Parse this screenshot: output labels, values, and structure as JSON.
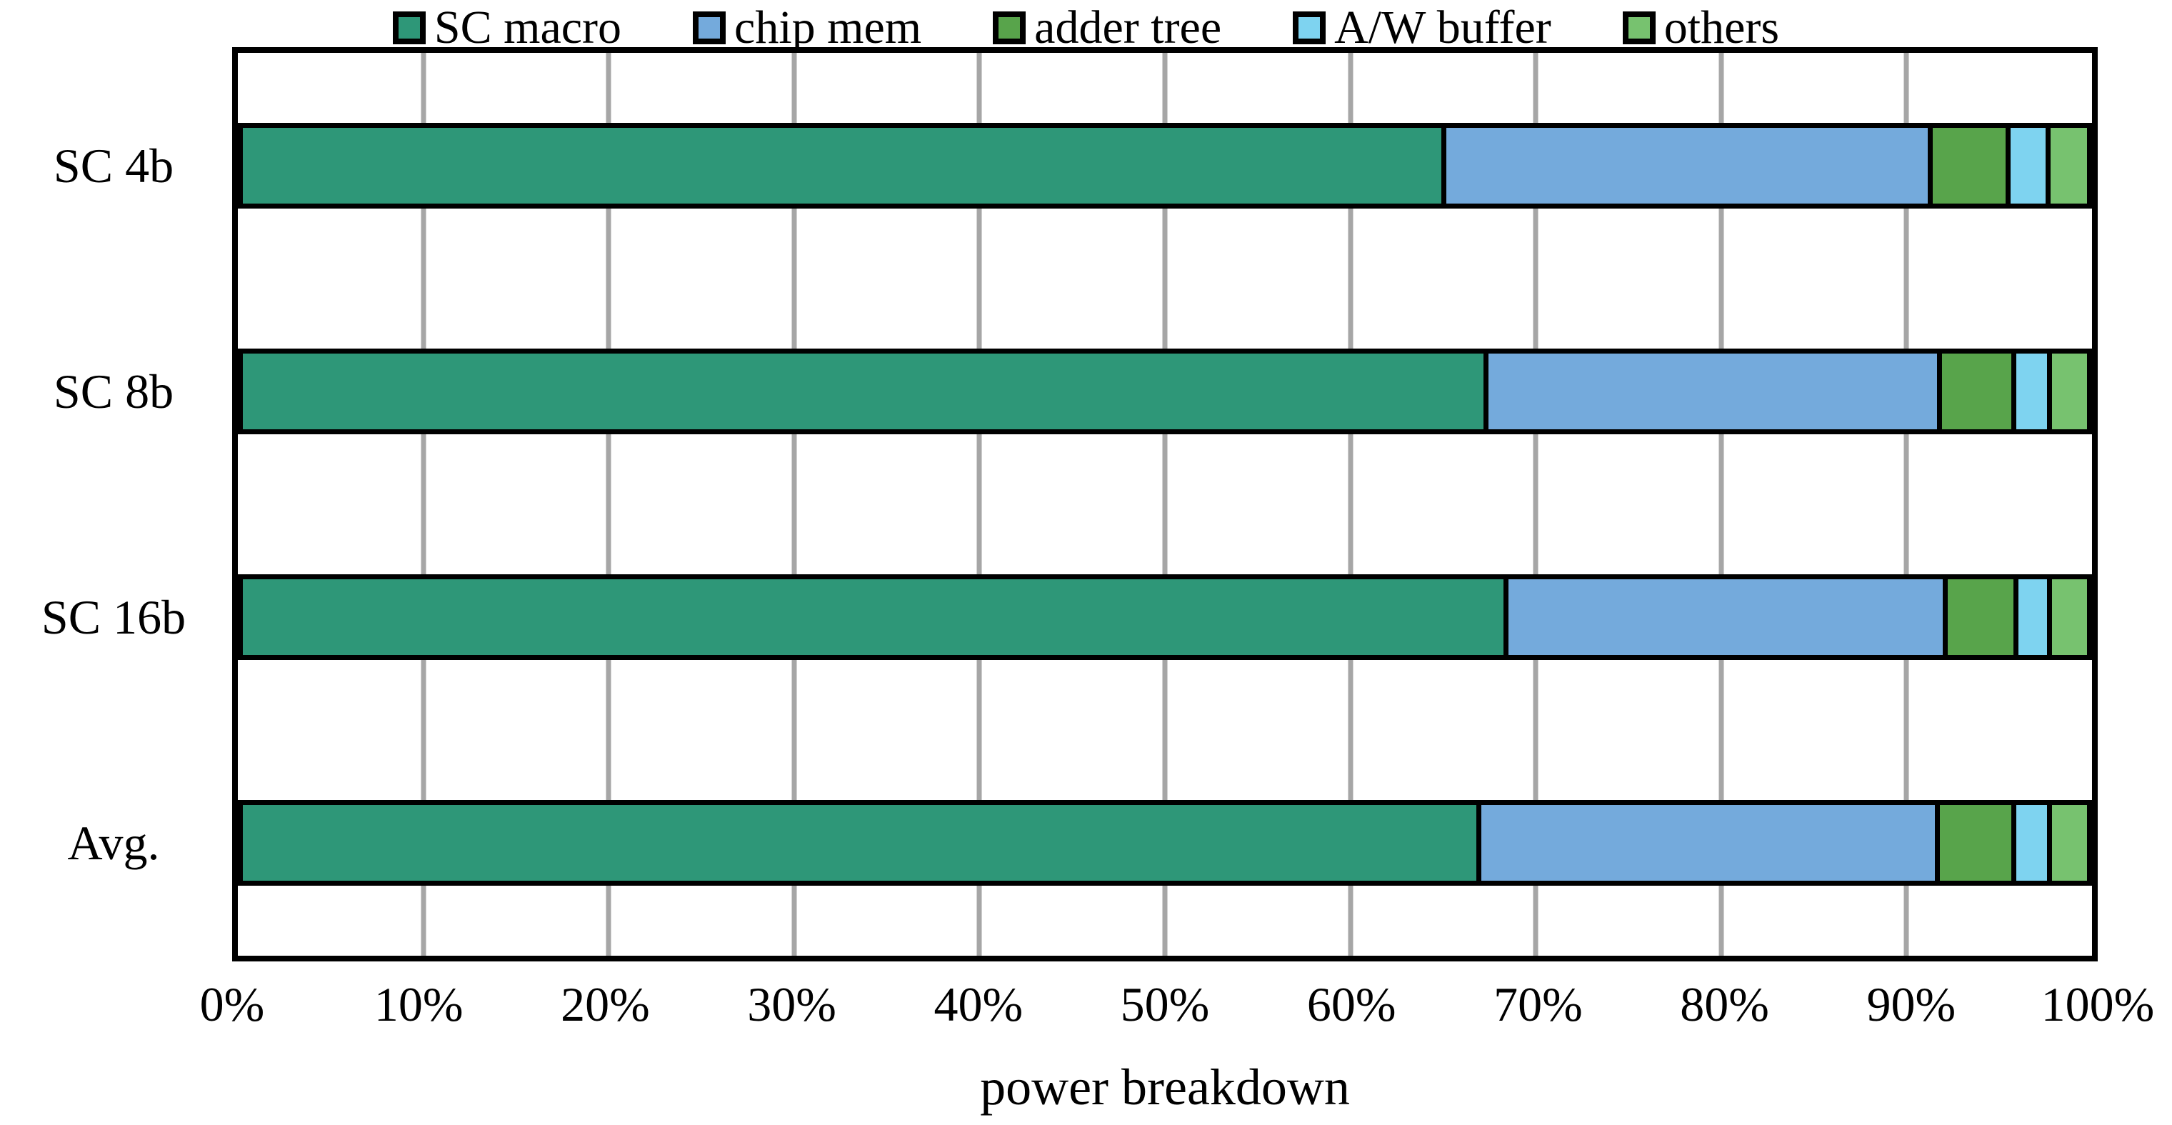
{
  "chart_data": {
    "type": "bar",
    "orientation": "horizontal",
    "stacked": true,
    "title": "",
    "xlabel": "power breakdown",
    "ylabel": "",
    "categories": [
      "SC 4b",
      "SC 8b",
      "SC 16b",
      "Avg."
    ],
    "series": [
      {
        "name": "SC macro",
        "color": "#2E9778",
        "values": [
          65.7,
          68.0,
          69.1,
          67.6
        ]
      },
      {
        "name": "chip mem",
        "color": "#74AADC",
        "values": [
          26.4,
          24.6,
          23.8,
          24.9
        ]
      },
      {
        "name": "adder tree",
        "color": "#58A44B",
        "values": [
          4.0,
          3.8,
          3.6,
          3.9
        ]
      },
      {
        "name": "A/W buffer",
        "color": "#7ED3F0",
        "values": [
          1.9,
          1.7,
          1.6,
          1.7
        ]
      },
      {
        "name": "others",
        "color": "#77C26F",
        "values": [
          2.0,
          1.9,
          1.9,
          1.9
        ]
      }
    ],
    "x_ticks": [
      "0%",
      "10%",
      "20%",
      "30%",
      "40%",
      "50%",
      "60%",
      "70%",
      "80%",
      "90%",
      "100%"
    ],
    "xlim": [
      0,
      100
    ],
    "grid": "vertical-major-every-10pct",
    "gridline_color": "#A6A6A6",
    "bar_outline_color": "#000000",
    "legend_position": "top"
  }
}
